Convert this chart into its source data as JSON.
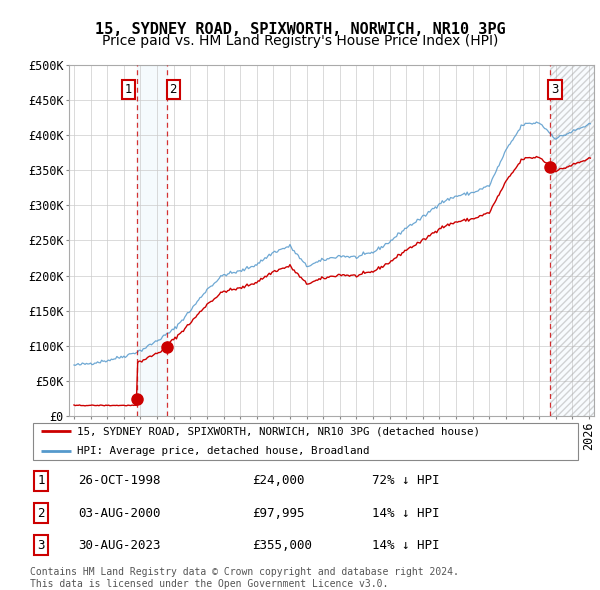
{
  "title": "15, SYDNEY ROAD, SPIXWORTH, NORWICH, NR10 3PG",
  "subtitle": "Price paid vs. HM Land Registry's House Price Index (HPI)",
  "ylabel_ticks": [
    "£0",
    "£50K",
    "£100K",
    "£150K",
    "£200K",
    "£250K",
    "£300K",
    "£350K",
    "£400K",
    "£450K",
    "£500K"
  ],
  "ytick_values": [
    0,
    50000,
    100000,
    150000,
    200000,
    250000,
    300000,
    350000,
    400000,
    450000,
    500000
  ],
  "ylim": [
    0,
    500000
  ],
  "xlim_start": 1994.7,
  "xlim_end": 2026.3,
  "sale_dates": [
    1998.82,
    2000.58,
    2023.66
  ],
  "sale_prices": [
    24000,
    97995,
    355000
  ],
  "sale_labels": [
    "1",
    "2",
    "3"
  ],
  "sale_line_color": "#cc0000",
  "hpi_line_color": "#5599cc",
  "annotation_box_color": "#cc0000",
  "span12_color": "#ddeeff",
  "span3_color": "#ddeeff",
  "hatch_color": "#cccccc",
  "legend_label_red": "15, SYDNEY ROAD, SPIXWORTH, NORWICH, NR10 3PG (detached house)",
  "legend_label_blue": "HPI: Average price, detached house, Broadland",
  "table_data": [
    [
      "1",
      "26-OCT-1998",
      "£24,000",
      "72% ↓ HPI"
    ],
    [
      "2",
      "03-AUG-2000",
      "£97,995",
      "14% ↓ HPI"
    ],
    [
      "3",
      "30-AUG-2023",
      "£355,000",
      "14% ↓ HPI"
    ]
  ],
  "footer": "Contains HM Land Registry data © Crown copyright and database right 2024.\nThis data is licensed under the Open Government Licence v3.0.",
  "background_color": "#ffffff",
  "grid_color": "#cccccc",
  "title_fontsize": 11,
  "subtitle_fontsize": 10,
  "tick_fontsize": 8.5,
  "hpi_anchors_years": [
    1995,
    1996,
    1997,
    1998,
    1999,
    2000,
    2001,
    2002,
    2003,
    2004,
    2005,
    2006,
    2007,
    2008,
    2009,
    2010,
    2011,
    2012,
    2013,
    2014,
    2015,
    2016,
    2017,
    2018,
    2019,
    2020,
    2021,
    2022,
    2023,
    2024,
    2025,
    2026
  ],
  "hpi_anchors_vals": [
    72000,
    75000,
    79000,
    85000,
    93000,
    107000,
    123000,
    150000,
    180000,
    201000,
    206000,
    216000,
    233000,
    242000,
    213000,
    222000,
    228000,
    226000,
    233000,
    248000,
    268000,
    283000,
    303000,
    313000,
    318000,
    328000,
    378000,
    415000,
    418000,
    395000,
    405000,
    415000
  ]
}
